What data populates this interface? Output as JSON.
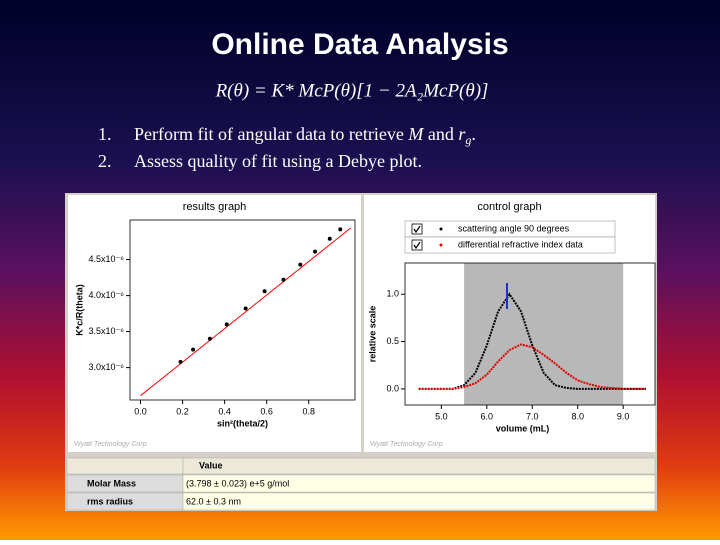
{
  "title": "Online Data Analysis",
  "formula": "R(θ) = K* McP(θ)[1 − 2A₂McP(θ)]",
  "bullets": [
    {
      "number": "1.",
      "parts": [
        "Perform fit of angular data to retrieve ",
        "M",
        " and ",
        "r",
        "g",
        "."
      ]
    },
    {
      "number": "2.",
      "parts": [
        "Assess quality of fit using a Debye plot."
      ]
    }
  ],
  "chart_data": [
    {
      "type": "scatter",
      "title": "results graph",
      "x_label": "sin²(theta/2)",
      "y_label": "K*c/R(theta)",
      "watermark": "Wyatt Technology Corp.",
      "xlim": [
        -0.05,
        1.02
      ],
      "ylim": [
        2.55e-06,
        5.05e-06
      ],
      "xticks": [
        {
          "value": 0,
          "label": "0.0"
        },
        0.2,
        0.4,
        0.6,
        0.8
      ],
      "yticks": [
        {
          "value": 3e-06,
          "label": "3.0x10⁻⁶"
        },
        {
          "value": 3.5e-06,
          "label": "3.5x10⁻⁶"
        },
        {
          "value": 4e-06,
          "label": "4.0x10⁻⁶"
        },
        {
          "value": 4.5e-06,
          "label": "4.5x10⁻⁶"
        }
      ],
      "series": [
        {
          "color": "#000000",
          "x": [
            0.19,
            0.25,
            0.33,
            0.41,
            0.5,
            0.59,
            0.68,
            0.76,
            0.83,
            0.9,
            0.95
          ],
          "values": [
            3.08e-06,
            3.25e-06,
            3.4e-06,
            3.6e-06,
            3.82e-06,
            4.06e-06,
            4.22e-06,
            4.43e-06,
            4.61e-06,
            4.79e-06,
            4.92e-06
          ]
        }
      ],
      "fit": {
        "color": "#ff0000",
        "x": [
          0,
          1
        ],
        "values": [
          2.61e-06,
          4.94e-06
        ]
      }
    },
    {
      "type": "line",
      "title": "control graph",
      "x_label": "volume (mL)",
      "y_label": "relative scale",
      "watermark": "Wyatt Technology Corp.",
      "xlim": [
        4.2,
        9.7
      ],
      "ylim": [
        -0.17,
        1.33
      ],
      "xticks": [
        {
          "value": 5,
          "label": "5.0"
        },
        {
          "value": 6,
          "label": "6.0"
        },
        {
          "value": 7,
          "label": "7.0"
        },
        {
          "value": 8,
          "label": "8.0"
        },
        {
          "value": 9,
          "label": "9.0"
        }
      ],
      "yticks": [
        {
          "value": 0,
          "label": "0.0"
        },
        0.5,
        {
          "value": 1,
          "label": "1.0"
        }
      ],
      "shaded_region": [
        5.5,
        9.0
      ],
      "x": [
        4.5,
        4.75,
        5.0,
        5.25,
        5.5,
        5.75,
        6.0,
        6.25,
        6.5,
        6.75,
        7.0,
        7.25,
        7.5,
        7.75,
        8.0,
        8.25,
        8.5,
        8.75,
        9.0,
        9.25,
        9.5
      ],
      "series": [
        {
          "name": "scattering angle 90 degrees",
          "color": "#000000",
          "values": [
            0,
            0,
            0,
            0,
            0.04,
            0.17,
            0.46,
            0.82,
            1.0,
            0.82,
            0.46,
            0.17,
            0.04,
            0.01,
            0,
            0,
            0,
            0,
            0,
            0,
            0
          ]
        },
        {
          "name": "differential refractive index data",
          "color": "#e00000",
          "values": [
            0,
            0,
            0,
            0,
            0.02,
            0.06,
            0.15,
            0.29,
            0.41,
            0.47,
            0.44,
            0.36,
            0.27,
            0.17,
            0.09,
            0.05,
            0.02,
            0.01,
            0,
            0,
            0
          ]
        }
      ]
    }
  ],
  "table": {
    "header": [
      "",
      "Value"
    ],
    "rows": [
      [
        "Molar Mass",
        "(3.798 ± 0.023) e+5 g/mol"
      ],
      [
        "rms radius",
        "62.0 ± 0.3 nm"
      ]
    ]
  }
}
